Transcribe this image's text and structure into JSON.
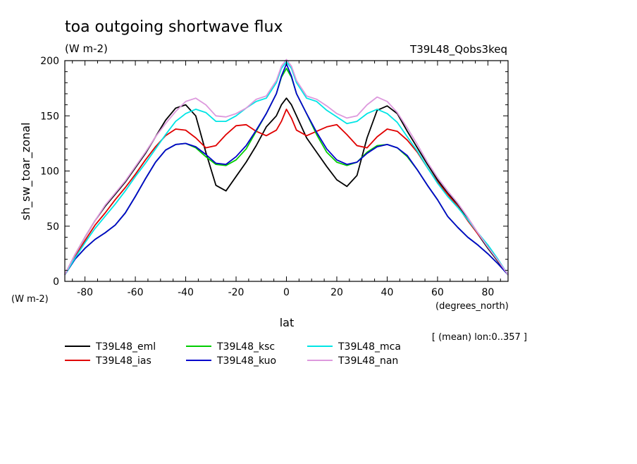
{
  "chart_data": {
    "type": "line",
    "title": "toa outgoing shortwave flux",
    "units_label": "(W m-2)",
    "experiment_label": "T39L48_Qobs3keq",
    "xlabel": "lat",
    "x_units": "(degrees_north)",
    "ylabel": "sh_sw_toar_zonal",
    "y_units": "(W m-2)",
    "averaging_note": "[ (mean) lon:0..357 ]",
    "xlim": [
      -88,
      88
    ],
    "ylim": [
      0,
      200
    ],
    "x_ticks": [
      -80,
      -60,
      -40,
      -20,
      0,
      20,
      40,
      60,
      80
    ],
    "y_ticks": [
      0,
      50,
      100,
      150,
      200
    ],
    "x": [
      -88,
      -84,
      -80,
      -76,
      -72,
      -68,
      -64,
      -60,
      -56,
      -52,
      -48,
      -44,
      -40,
      -36,
      -32,
      -28,
      -24,
      -20,
      -16,
      -12,
      -8,
      -4,
      -2,
      0,
      2,
      4,
      8,
      12,
      16,
      20,
      24,
      28,
      32,
      36,
      40,
      44,
      48,
      52,
      56,
      60,
      64,
      68,
      72,
      76,
      80,
      84,
      88
    ],
    "series": [
      {
        "name": "T39L48_eml",
        "color": "#000000",
        "values": [
          6,
          24,
          40,
          55,
          68,
          79,
          90,
          103,
          116,
          131,
          146,
          157,
          160,
          150,
          117,
          87,
          82,
          95,
          108,
          123,
          140,
          150,
          160,
          166,
          160,
          150,
          130,
          117,
          104,
          92,
          86,
          96,
          130,
          155,
          159,
          152,
          136,
          121,
          106,
          92,
          80,
          70,
          57,
          43,
          30,
          18,
          6
        ]
      },
      {
        "name": "T39L48_ias",
        "color": "#e00000",
        "values": [
          6,
          22,
          37,
          51,
          62,
          74,
          85,
          97,
          110,
          122,
          132,
          138,
          137,
          130,
          121,
          123,
          133,
          141,
          142,
          136,
          132,
          137,
          145,
          156,
          148,
          137,
          132,
          136,
          140,
          142,
          133,
          123,
          121,
          131,
          138,
          136,
          128,
          117,
          103,
          90,
          79,
          68,
          55,
          43,
          32,
          19,
          6
        ]
      },
      {
        "name": "T39L48_ksc",
        "color": "#00cc00",
        "values": [
          6,
          20,
          30,
          38,
          44,
          51,
          62,
          77,
          93,
          108,
          119,
          124,
          125,
          121,
          113,
          106,
          105,
          110,
          120,
          136,
          152,
          170,
          185,
          193,
          185,
          170,
          152,
          133,
          117,
          108,
          105,
          108,
          117,
          123,
          124,
          121,
          113,
          101,
          87,
          74,
          59,
          49,
          40,
          33,
          25,
          16,
          6
        ]
      },
      {
        "name": "T39L48_kuo",
        "color": "#0000cc",
        "values": [
          6,
          20,
          30,
          38,
          44,
          51,
          62,
          77,
          93,
          108,
          119,
          124,
          125,
          122,
          115,
          107,
          106,
          113,
          123,
          137,
          152,
          170,
          186,
          197,
          186,
          170,
          152,
          135,
          120,
          110,
          106,
          108,
          116,
          122,
          124,
          121,
          114,
          101,
          87,
          74,
          59,
          49,
          40,
          33,
          25,
          16,
          6
        ]
      },
      {
        "name": "T39L48_mca",
        "color": "#00e5e5",
        "values": [
          6,
          21,
          35,
          48,
          59,
          70,
          82,
          95,
          107,
          120,
          133,
          145,
          152,
          156,
          153,
          145,
          145,
          150,
          157,
          163,
          166,
          180,
          193,
          199,
          193,
          180,
          166,
          163,
          155,
          149,
          143,
          145,
          152,
          156,
          152,
          144,
          131,
          118,
          103,
          89,
          77,
          67,
          56,
          44,
          33,
          20,
          6
        ]
      },
      {
        "name": "T39L48_nan",
        "color": "#dd99dd",
        "values": [
          6,
          24,
          40,
          55,
          69,
          80,
          91,
          104,
          117,
          131,
          143,
          154,
          163,
          166,
          160,
          150,
          149,
          152,
          157,
          165,
          168,
          182,
          195,
          201,
          195,
          182,
          168,
          165,
          159,
          152,
          148,
          150,
          160,
          167,
          163,
          153,
          139,
          124,
          108,
          94,
          82,
          71,
          58,
          44,
          31,
          19,
          6
        ]
      }
    ]
  }
}
